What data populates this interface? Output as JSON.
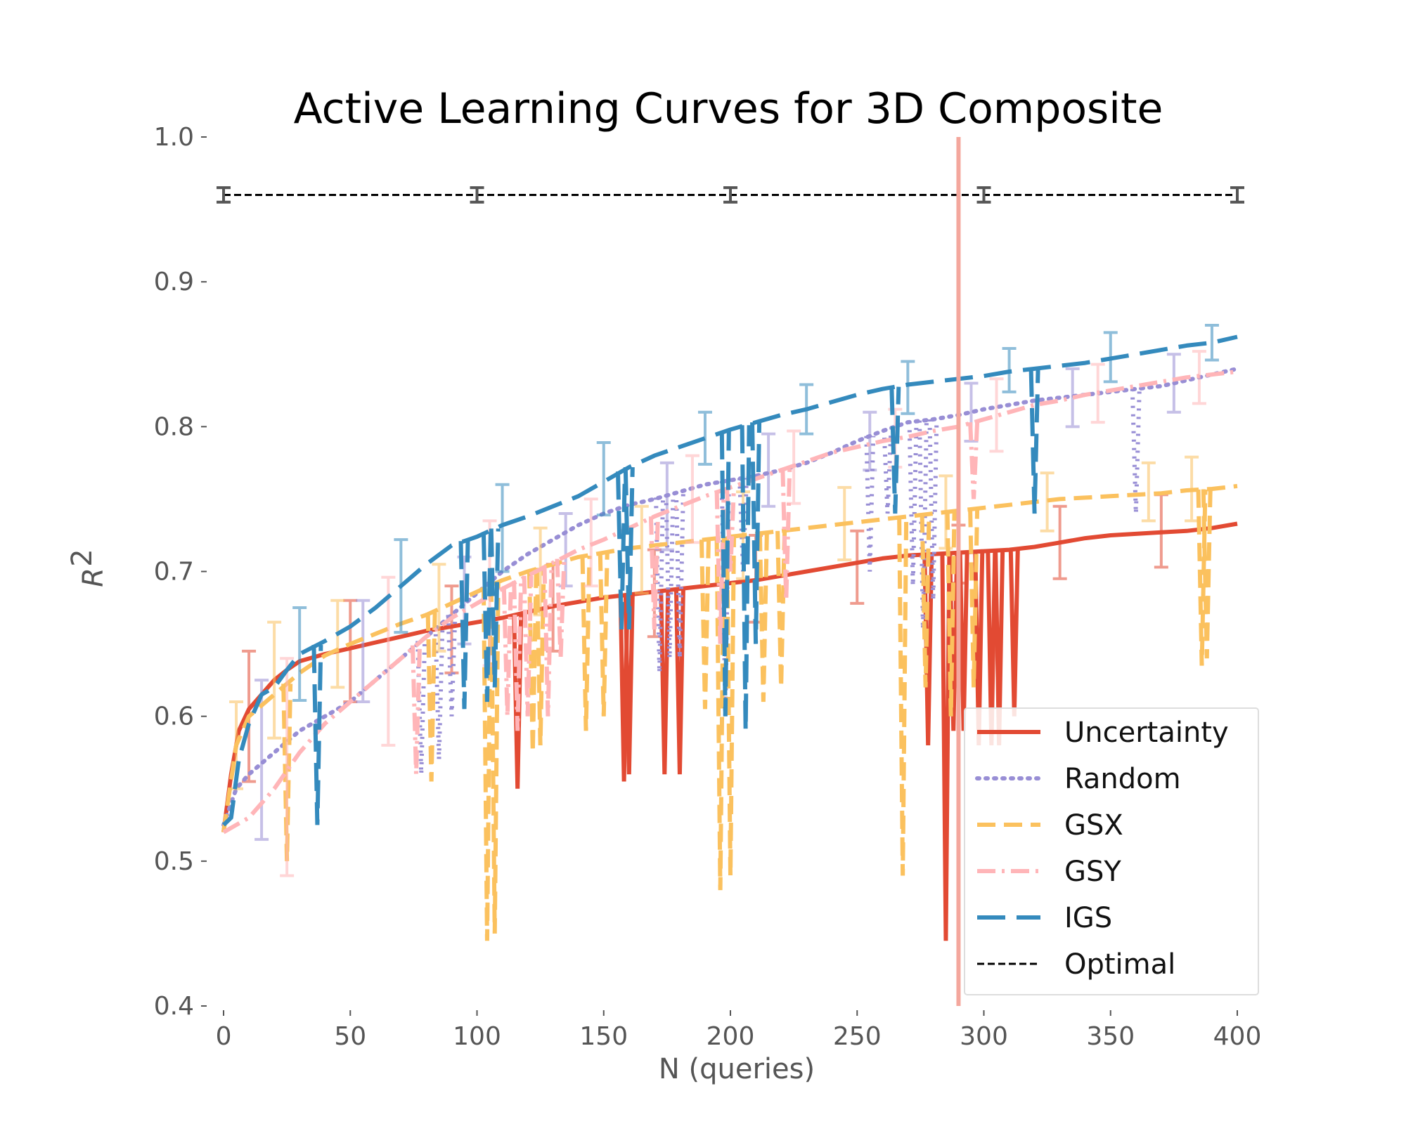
{
  "chart_data": {
    "type": "line",
    "title": "Active Learning Curves for 3D Composite",
    "xlabel": "N (queries)",
    "ylabel": "R",
    "ylabel_superscript": "2",
    "xlim": [
      -5,
      400
    ],
    "ylim": [
      0.4,
      1.0
    ],
    "xticks": [
      0,
      50,
      100,
      150,
      200,
      250,
      300,
      350,
      400
    ],
    "yticks": [
      0.4,
      0.5,
      0.6,
      0.7,
      0.8,
      0.9,
      1.0
    ],
    "xtick_labels": [
      "0",
      "50",
      "100",
      "150",
      "200",
      "250",
      "300",
      "350",
      "400"
    ],
    "ytick_labels": [
      "0.4",
      "0.5",
      "0.6",
      "0.7",
      "0.8",
      "0.9",
      "1.0"
    ],
    "grid": false,
    "legend_position": "bottom-right",
    "vertical_line": {
      "x": 290,
      "color": "#f4a79d"
    },
    "series": [
      {
        "name": "Uncertainty",
        "color": "#e24a33",
        "dash": "solid",
        "x": [
          0,
          3,
          6,
          10,
          15,
          20,
          25,
          30,
          40,
          50,
          60,
          70,
          80,
          90,
          100,
          110,
          120,
          130,
          140,
          150,
          160,
          170,
          180,
          190,
          200,
          210,
          220,
          230,
          240,
          250,
          260,
          270,
          280,
          290,
          300,
          310,
          320,
          330,
          340,
          350,
          360,
          370,
          380,
          390,
          400
        ],
        "y": [
          0.52,
          0.56,
          0.59,
          0.605,
          0.615,
          0.625,
          0.632,
          0.638,
          0.643,
          0.647,
          0.651,
          0.655,
          0.659,
          0.662,
          0.665,
          0.668,
          0.672,
          0.676,
          0.679,
          0.682,
          0.684,
          0.686,
          0.688,
          0.69,
          0.692,
          0.694,
          0.697,
          0.7,
          0.703,
          0.706,
          0.709,
          0.711,
          0.712,
          0.713,
          0.714,
          0.715,
          0.717,
          0.72,
          0.723,
          0.725,
          0.726,
          0.727,
          0.728,
          0.73,
          0.733
        ],
        "dips": [
          [
            116,
            0.55
          ],
          [
            158,
            0.555
          ],
          [
            160,
            0.56
          ],
          [
            174,
            0.56
          ],
          [
            180,
            0.56
          ],
          [
            278,
            0.58
          ],
          [
            285,
            0.445
          ],
          [
            288,
            0.59
          ],
          [
            292,
            0.59
          ],
          [
            298,
            0.58
          ],
          [
            303,
            0.58
          ],
          [
            306,
            0.58
          ],
          [
            312,
            0.6
          ]
        ],
        "errorbars": [
          [
            10,
            0.6,
            0.045
          ],
          [
            50,
            0.645,
            0.035
          ],
          [
            90,
            0.66,
            0.03
          ],
          [
            130,
            0.675,
            0.03
          ],
          [
            170,
            0.685,
            0.03
          ],
          [
            210,
            0.695,
            0.03
          ],
          [
            250,
            0.703,
            0.025
          ],
          [
            290,
            0.712,
            0.02
          ],
          [
            330,
            0.72,
            0.025
          ],
          [
            370,
            0.728,
            0.025
          ]
        ]
      },
      {
        "name": "Random",
        "color": "#988ed5",
        "dash": "dotted",
        "x": [
          0,
          5,
          10,
          20,
          30,
          40,
          50,
          60,
          70,
          80,
          90,
          100,
          110,
          120,
          130,
          140,
          150,
          160,
          170,
          180,
          190,
          200,
          210,
          220,
          230,
          240,
          250,
          260,
          270,
          280,
          290,
          300,
          310,
          320,
          330,
          340,
          350,
          360,
          370,
          380,
          390,
          400
        ],
        "y": [
          0.525,
          0.55,
          0.56,
          0.575,
          0.59,
          0.6,
          0.61,
          0.625,
          0.64,
          0.655,
          0.67,
          0.685,
          0.7,
          0.712,
          0.722,
          0.732,
          0.74,
          0.746,
          0.75,
          0.755,
          0.76,
          0.763,
          0.766,
          0.77,
          0.775,
          0.782,
          0.79,
          0.797,
          0.803,
          0.805,
          0.808,
          0.812,
          0.815,
          0.818,
          0.82,
          0.822,
          0.824,
          0.826,
          0.828,
          0.832,
          0.836,
          0.84
        ],
        "dips": [
          [
            78,
            0.56
          ],
          [
            85,
            0.57
          ],
          [
            90,
            0.6
          ],
          [
            172,
            0.63
          ],
          [
            176,
            0.64
          ],
          [
            180,
            0.64
          ],
          [
            198,
            0.6
          ],
          [
            205,
            0.7
          ],
          [
            255,
            0.7
          ],
          [
            262,
            0.74
          ],
          [
            272,
            0.69
          ],
          [
            276,
            0.66
          ],
          [
            280,
            0.68
          ],
          [
            360,
            0.74
          ]
        ],
        "errorbars": [
          [
            15,
            0.57,
            0.055
          ],
          [
            55,
            0.645,
            0.035
          ],
          [
            95,
            0.68,
            0.03
          ],
          [
            135,
            0.715,
            0.025
          ],
          [
            175,
            0.745,
            0.03
          ],
          [
            215,
            0.77,
            0.025
          ],
          [
            255,
            0.79,
            0.02
          ],
          [
            295,
            0.81,
            0.02
          ],
          [
            335,
            0.82,
            0.02
          ],
          [
            375,
            0.83,
            0.02
          ]
        ]
      },
      {
        "name": "GSX",
        "color": "#fbc15e",
        "dash": "dashed",
        "x": [
          0,
          5,
          10,
          20,
          30,
          40,
          50,
          60,
          70,
          80,
          90,
          100,
          110,
          120,
          130,
          140,
          150,
          160,
          170,
          180,
          190,
          200,
          210,
          220,
          230,
          240,
          250,
          260,
          270,
          280,
          290,
          300,
          310,
          320,
          330,
          340,
          350,
          360,
          370,
          380,
          390,
          400
        ],
        "y": [
          0.52,
          0.58,
          0.6,
          0.615,
          0.63,
          0.642,
          0.65,
          0.657,
          0.664,
          0.67,
          0.678,
          0.686,
          0.694,
          0.7,
          0.705,
          0.71,
          0.713,
          0.716,
          0.718,
          0.72,
          0.722,
          0.724,
          0.726,
          0.728,
          0.73,
          0.732,
          0.734,
          0.736,
          0.738,
          0.74,
          0.742,
          0.744,
          0.746,
          0.748,
          0.75,
          0.751,
          0.752,
          0.753,
          0.754,
          0.756,
          0.757,
          0.759
        ],
        "dips": [
          [
            25,
            0.5
          ],
          [
            82,
            0.555
          ],
          [
            104,
            0.445
          ],
          [
            107,
            0.45
          ],
          [
            122,
            0.575
          ],
          [
            125,
            0.58
          ],
          [
            143,
            0.59
          ],
          [
            150,
            0.6
          ],
          [
            190,
            0.605
          ],
          [
            196,
            0.48
          ],
          [
            200,
            0.49
          ],
          [
            213,
            0.61
          ],
          [
            220,
            0.62
          ],
          [
            268,
            0.49
          ],
          [
            277,
            0.62
          ],
          [
            287,
            0.6
          ],
          [
            296,
            0.62
          ],
          [
            386,
            0.635
          ],
          [
            388,
            0.64
          ]
        ],
        "errorbars": [
          [
            5,
            0.58,
            0.03
          ],
          [
            20,
            0.625,
            0.04
          ],
          [
            45,
            0.65,
            0.03
          ],
          [
            85,
            0.675,
            0.03
          ],
          [
            125,
            0.7,
            0.03
          ],
          [
            165,
            0.715,
            0.03
          ],
          [
            205,
            0.725,
            0.03
          ],
          [
            245,
            0.733,
            0.025
          ],
          [
            285,
            0.741,
            0.025
          ],
          [
            325,
            0.748,
            0.02
          ],
          [
            365,
            0.755,
            0.02
          ],
          [
            382,
            0.757,
            0.022
          ]
        ]
      },
      {
        "name": "GSY",
        "color": "#ffb5b8",
        "dash": "dashdot",
        "x": [
          0,
          5,
          10,
          20,
          30,
          40,
          50,
          60,
          70,
          80,
          90,
          100,
          110,
          120,
          130,
          140,
          150,
          160,
          170,
          180,
          190,
          200,
          210,
          220,
          230,
          240,
          250,
          260,
          270,
          280,
          290,
          300,
          310,
          320,
          330,
          340,
          350,
          360,
          370,
          380,
          390,
          400
        ],
        "y": [
          0.52,
          0.525,
          0.53,
          0.55,
          0.575,
          0.595,
          0.61,
          0.625,
          0.64,
          0.655,
          0.668,
          0.678,
          0.688,
          0.697,
          0.706,
          0.715,
          0.722,
          0.73,
          0.738,
          0.745,
          0.752,
          0.758,
          0.764,
          0.77,
          0.776,
          0.782,
          0.786,
          0.79,
          0.793,
          0.797,
          0.8,
          0.805,
          0.81,
          0.815,
          0.818,
          0.822,
          0.825,
          0.828,
          0.831,
          0.834,
          0.836,
          0.838
        ],
        "dips": [
          [
            76,
            0.56
          ],
          [
            112,
            0.6
          ],
          [
            116,
            0.59
          ],
          [
            120,
            0.6
          ],
          [
            128,
            0.6
          ],
          [
            133,
            0.64
          ],
          [
            170,
            0.66
          ],
          [
            196,
            0.65
          ],
          [
            200,
            0.7
          ],
          [
            222,
            0.68
          ],
          [
            296,
            0.75
          ]
        ],
        "errorbars": [
          [
            25,
            0.565,
            0.075
          ],
          [
            65,
            0.638,
            0.058
          ],
          [
            105,
            0.685,
            0.05
          ],
          [
            145,
            0.72,
            0.03
          ],
          [
            185,
            0.75,
            0.03
          ],
          [
            225,
            0.772,
            0.025
          ],
          [
            265,
            0.792,
            0.02
          ],
          [
            305,
            0.808,
            0.025
          ],
          [
            345,
            0.823,
            0.02
          ],
          [
            385,
            0.834,
            0.018
          ]
        ]
      },
      {
        "name": "IGS",
        "color": "#348abd",
        "dash": "longdash",
        "x": [
          0,
          3,
          6,
          10,
          15,
          20,
          25,
          30,
          40,
          50,
          60,
          70,
          80,
          90,
          100,
          110,
          120,
          130,
          140,
          150,
          160,
          170,
          180,
          190,
          200,
          210,
          220,
          230,
          240,
          250,
          260,
          270,
          280,
          290,
          300,
          310,
          320,
          330,
          340,
          350,
          360,
          370,
          380,
          390,
          400
        ],
        "y": [
          0.525,
          0.53,
          0.57,
          0.595,
          0.615,
          0.62,
          0.632,
          0.643,
          0.652,
          0.662,
          0.675,
          0.69,
          0.705,
          0.718,
          0.724,
          0.732,
          0.738,
          0.745,
          0.752,
          0.762,
          0.772,
          0.78,
          0.786,
          0.792,
          0.798,
          0.803,
          0.808,
          0.812,
          0.817,
          0.822,
          0.826,
          0.829,
          0.831,
          0.833,
          0.835,
          0.838,
          0.84,
          0.842,
          0.844,
          0.847,
          0.85,
          0.853,
          0.856,
          0.858,
          0.862
        ],
        "dips": [
          [
            37,
            0.525
          ],
          [
            95,
            0.605
          ],
          [
            104,
            0.61
          ],
          [
            107,
            0.62
          ],
          [
            157,
            0.66
          ],
          [
            160,
            0.66
          ],
          [
            198,
            0.6
          ],
          [
            206,
            0.59
          ],
          [
            210,
            0.65
          ],
          [
            265,
            0.74
          ],
          [
            320,
            0.74
          ]
        ],
        "errorbars": [
          [
            30,
            0.643,
            0.032
          ],
          [
            70,
            0.69,
            0.032
          ],
          [
            110,
            0.73,
            0.03
          ],
          [
            150,
            0.764,
            0.025
          ],
          [
            190,
            0.792,
            0.018
          ],
          [
            230,
            0.812,
            0.017
          ],
          [
            270,
            0.827,
            0.018
          ],
          [
            310,
            0.839,
            0.015
          ],
          [
            350,
            0.848,
            0.017
          ],
          [
            390,
            0.858,
            0.012
          ]
        ]
      },
      {
        "name": "Optimal",
        "color": "#000000",
        "dash": "shortdash",
        "x": [
          0,
          400
        ],
        "y": [
          0.96,
          0.96
        ],
        "dips": [],
        "errorbars": [
          [
            0,
            0.96,
            0.005
          ],
          [
            100,
            0.96,
            0.005
          ],
          [
            200,
            0.96,
            0.005
          ],
          [
            300,
            0.96,
            0.005
          ],
          [
            400,
            0.96,
            0.005
          ]
        ]
      }
    ]
  }
}
